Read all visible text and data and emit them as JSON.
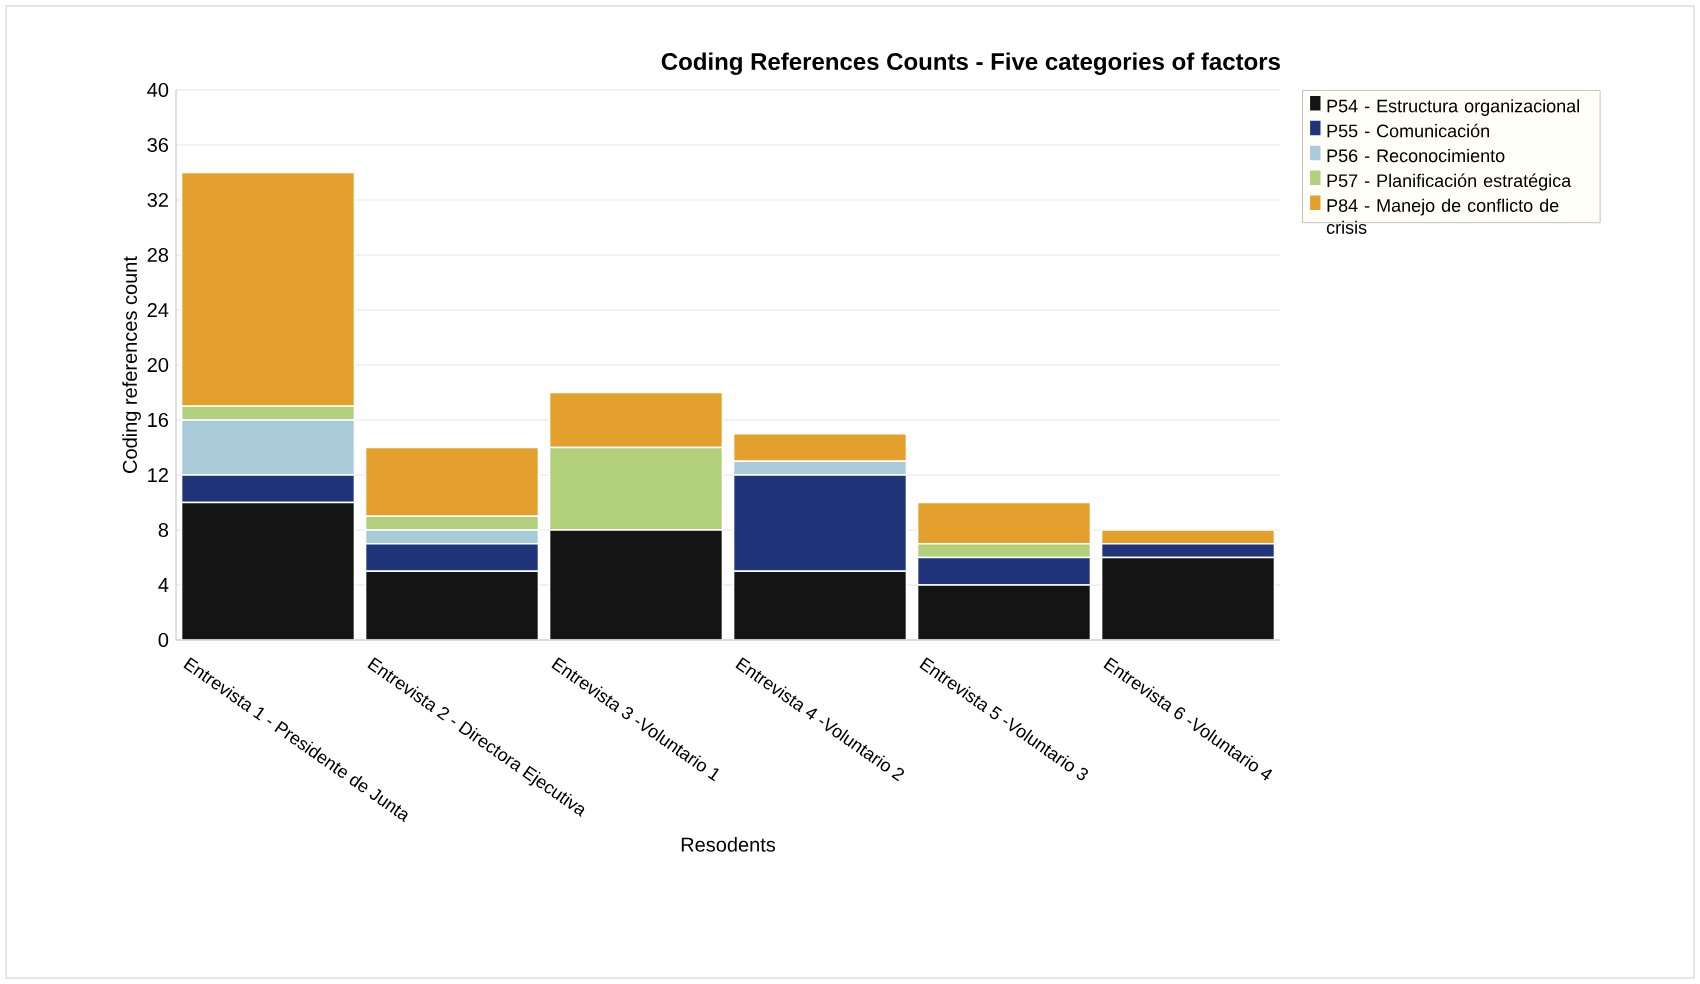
{
  "chart_data": {
    "type": "bar",
    "stacked": true,
    "title": "Coding References Counts - Five categories of factors",
    "xlabel": "Resodents",
    "ylabel": "Coding references count",
    "categories": [
      "Entrevista 1 - Presidente de Junta",
      "Entrevista 2 - Directora Ejecutiva",
      "Entrevista 3 -Voluntario 1",
      "Entrevista 4 -Voluntario 2",
      "Entrevista 5 -Voluntario 3",
      "Entrevista 6 -Voluntario 4"
    ],
    "series": [
      {
        "name": "P54 - Estructura organizacional",
        "color": "#141414",
        "values": [
          10,
          5,
          8,
          5,
          4,
          6
        ]
      },
      {
        "name": "P55 - Comunicación",
        "color": "#1f3479",
        "values": [
          2,
          2,
          0,
          7,
          2,
          1
        ]
      },
      {
        "name": "P56 - Reconocimiento",
        "color": "#a9cbd9",
        "values": [
          4,
          1,
          0,
          1,
          0,
          0
        ]
      },
      {
        "name": "P57 - Planificación estratégica",
        "color": "#b2cf7c",
        "values": [
          1,
          1,
          6,
          0,
          1,
          0
        ]
      },
      {
        "name": "P84 - Manejo de conflicto de crisis",
        "color": "#e3a02c",
        "values": [
          17,
          5,
          4,
          2,
          3,
          1
        ]
      }
    ],
    "ylim": [
      0,
      40
    ],
    "yticks": [
      0,
      4,
      8,
      12,
      16,
      20,
      24,
      28,
      32,
      36,
      40
    ],
    "grid": "y",
    "legend": "right"
  }
}
